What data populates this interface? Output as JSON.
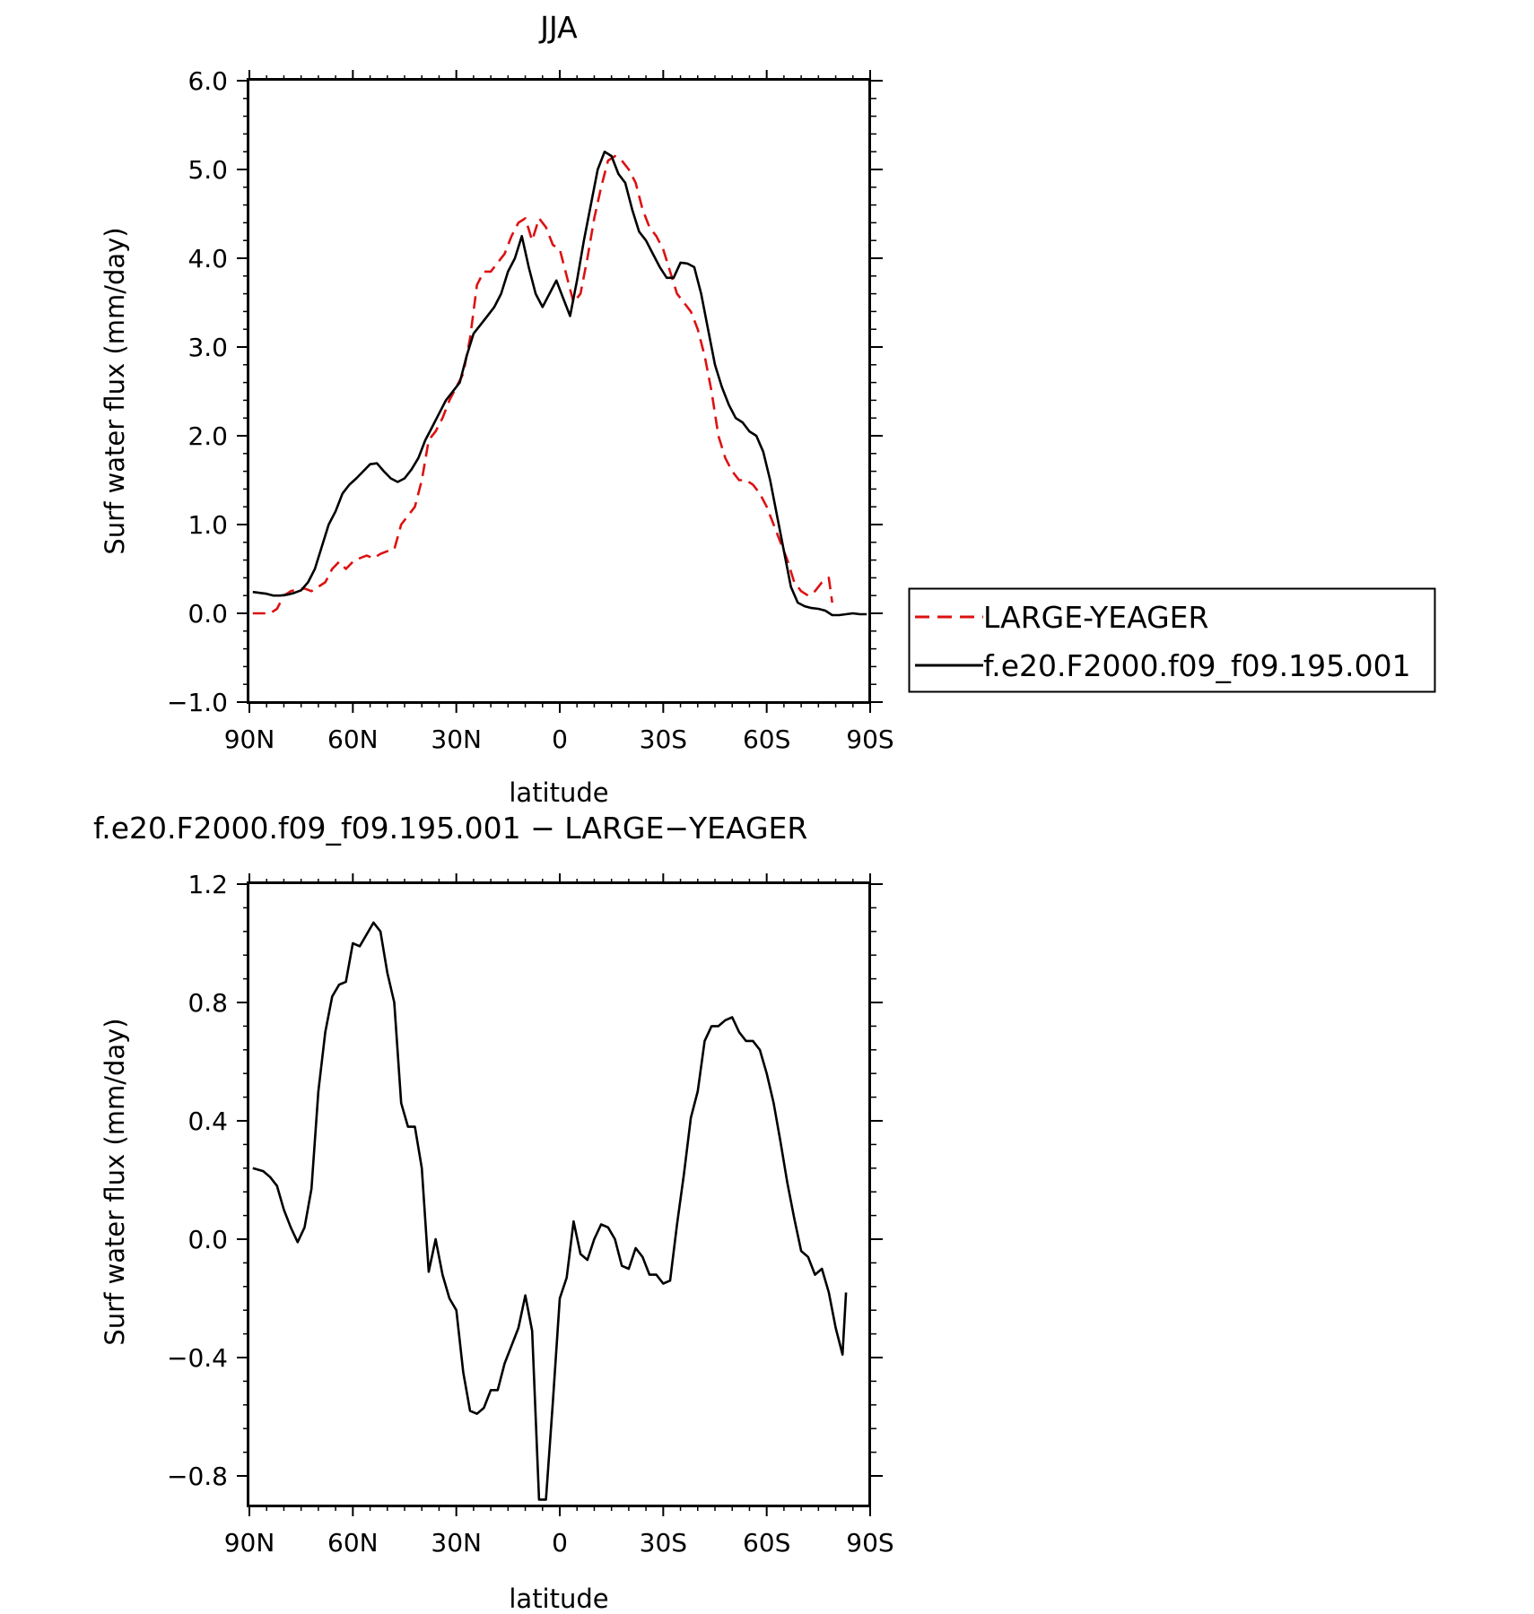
{
  "chart_data": [
    {
      "type": "line",
      "title": "JJA",
      "xlabel": "latitude",
      "ylabel": "Surf water flux (mm/day)",
      "xlim": [
        90,
        -90
      ],
      "ylim": [
        -1.0,
        6.0
      ],
      "x_ticks": [
        90,
        60,
        30,
        0,
        -30,
        -60,
        -90
      ],
      "x_tick_labels": [
        "90N",
        "60N",
        "30N",
        "0",
        "30S",
        "60S",
        "90S"
      ],
      "y_ticks": [
        -1.0,
        0.0,
        1.0,
        2.0,
        3.0,
        4.0,
        5.0,
        6.0
      ],
      "y_tick_labels": [
        "−1.0",
        "0.0",
        "1.0",
        "2.0",
        "3.0",
        "4.0",
        "5.0",
        "6.0"
      ],
      "grid": false,
      "legend_position": "right",
      "series": [
        {
          "name": "LARGE-YEAGER",
          "color": "#dd1111",
          "dash": "dashed",
          "points": [
            [
              89,
              0.0
            ],
            [
              87,
              0.0
            ],
            [
              84,
              0.0
            ],
            [
              82,
              0.05
            ],
            [
              80,
              0.2
            ],
            [
              78,
              0.25
            ],
            [
              76,
              0.27
            ],
            [
              74,
              0.28
            ],
            [
              72,
              0.25
            ],
            [
              70,
              0.3
            ],
            [
              68,
              0.35
            ],
            [
              66,
              0.5
            ],
            [
              64,
              0.58
            ],
            [
              62,
              0.5
            ],
            [
              60,
              0.58
            ],
            [
              58,
              0.62
            ],
            [
              56,
              0.65
            ],
            [
              54,
              0.62
            ],
            [
              52,
              0.67
            ],
            [
              50,
              0.7
            ],
            [
              48,
              0.72
            ],
            [
              46,
              1.0
            ],
            [
              44,
              1.1
            ],
            [
              42,
              1.2
            ],
            [
              40,
              1.5
            ],
            [
              38,
              1.95
            ],
            [
              36,
              2.05
            ],
            [
              34,
              2.2
            ],
            [
              32,
              2.4
            ],
            [
              30,
              2.55
            ],
            [
              28,
              2.7
            ],
            [
              26,
              3.1
            ],
            [
              24,
              3.7
            ],
            [
              22,
              3.85
            ],
            [
              20,
              3.85
            ],
            [
              18,
              3.95
            ],
            [
              16,
              4.05
            ],
            [
              14,
              4.25
            ],
            [
              12,
              4.4
            ],
            [
              10,
              4.45
            ],
            [
              8,
              4.2
            ],
            [
              6,
              4.45
            ],
            [
              4,
              4.35
            ],
            [
              2,
              4.15
            ],
            [
              0,
              4.1
            ],
            [
              -2,
              3.8
            ],
            [
              -4,
              3.5
            ],
            [
              -6,
              3.6
            ],
            [
              -8,
              4.0
            ],
            [
              -10,
              4.45
            ],
            [
              -12,
              4.8
            ],
            [
              -14,
              5.1
            ],
            [
              -16,
              5.15
            ],
            [
              -18,
              5.1
            ],
            [
              -20,
              5.0
            ],
            [
              -22,
              4.85
            ],
            [
              -24,
              4.55
            ],
            [
              -26,
              4.35
            ],
            [
              -28,
              4.25
            ],
            [
              -30,
              4.1
            ],
            [
              -32,
              3.85
            ],
            [
              -34,
              3.6
            ],
            [
              -36,
              3.5
            ],
            [
              -38,
              3.4
            ],
            [
              -40,
              3.2
            ],
            [
              -42,
              2.9
            ],
            [
              -44,
              2.5
            ],
            [
              -46,
              2.0
            ],
            [
              -48,
              1.75
            ],
            [
              -50,
              1.6
            ],
            [
              -52,
              1.5
            ],
            [
              -54,
              1.5
            ],
            [
              -56,
              1.45
            ],
            [
              -58,
              1.35
            ],
            [
              -60,
              1.2
            ],
            [
              -62,
              1.0
            ],
            [
              -64,
              0.8
            ],
            [
              -66,
              0.6
            ],
            [
              -68,
              0.35
            ],
            [
              -70,
              0.25
            ],
            [
              -72,
              0.2
            ],
            [
              -74,
              0.25
            ],
            [
              -76,
              0.35
            ],
            [
              -78,
              0.4
            ],
            [
              -79,
              0.12
            ]
          ]
        },
        {
          "name": "f.e20.F2000.f09_f09.195.001",
          "color": "#000000",
          "dash": "solid",
          "points": [
            [
              89,
              0.24
            ],
            [
              87,
              0.23
            ],
            [
              85,
              0.22
            ],
            [
              83,
              0.2
            ],
            [
              81,
              0.2
            ],
            [
              79,
              0.21
            ],
            [
              77,
              0.23
            ],
            [
              75,
              0.26
            ],
            [
              73,
              0.35
            ],
            [
              71,
              0.5
            ],
            [
              69,
              0.75
            ],
            [
              67,
              1.0
            ],
            [
              65,
              1.15
            ],
            [
              63,
              1.35
            ],
            [
              61,
              1.45
            ],
            [
              59,
              1.52
            ],
            [
              57,
              1.6
            ],
            [
              55,
              1.68
            ],
            [
              53,
              1.69
            ],
            [
              51,
              1.6
            ],
            [
              49,
              1.52
            ],
            [
              47,
              1.48
            ],
            [
              45,
              1.52
            ],
            [
              43,
              1.62
            ],
            [
              41,
              1.75
            ],
            [
              39,
              1.95
            ],
            [
              37,
              2.1
            ],
            [
              35,
              2.25
            ],
            [
              33,
              2.4
            ],
            [
              31,
              2.5
            ],
            [
              29,
              2.6
            ],
            [
              27,
              2.9
            ],
            [
              25,
              3.15
            ],
            [
              23,
              3.25
            ],
            [
              21,
              3.35
            ],
            [
              19,
              3.45
            ],
            [
              17,
              3.6
            ],
            [
              15,
              3.85
            ],
            [
              13,
              4.0
            ],
            [
              11,
              4.25
            ],
            [
              9,
              3.9
            ],
            [
              7,
              3.6
            ],
            [
              5,
              3.45
            ],
            [
              3,
              3.6
            ],
            [
              1,
              3.75
            ],
            [
              -1,
              3.55
            ],
            [
              -3,
              3.35
            ],
            [
              -5,
              3.75
            ],
            [
              -7,
              4.2
            ],
            [
              -9,
              4.6
            ],
            [
              -11,
              5.0
            ],
            [
              -13,
              5.2
            ],
            [
              -15,
              5.15
            ],
            [
              -17,
              4.95
            ],
            [
              -19,
              4.85
            ],
            [
              -21,
              4.55
            ],
            [
              -23,
              4.3
            ],
            [
              -25,
              4.2
            ],
            [
              -27,
              4.05
            ],
            [
              -29,
              3.9
            ],
            [
              -31,
              3.78
            ],
            [
              -33,
              3.78
            ],
            [
              -35,
              3.95
            ],
            [
              -37,
              3.94
            ],
            [
              -39,
              3.9
            ],
            [
              -41,
              3.6
            ],
            [
              -43,
              3.2
            ],
            [
              -45,
              2.8
            ],
            [
              -47,
              2.55
            ],
            [
              -49,
              2.35
            ],
            [
              -51,
              2.2
            ],
            [
              -53,
              2.15
            ],
            [
              -55,
              2.05
            ],
            [
              -57,
              2.0
            ],
            [
              -59,
              1.82
            ],
            [
              -61,
              1.5
            ],
            [
              -63,
              1.1
            ],
            [
              -65,
              0.7
            ],
            [
              -67,
              0.3
            ],
            [
              -69,
              0.12
            ],
            [
              -71,
              0.08
            ],
            [
              -73,
              0.06
            ],
            [
              -75,
              0.05
            ],
            [
              -77,
              0.03
            ],
            [
              -79,
              -0.02
            ],
            [
              -81,
              -0.02
            ],
            [
              -83,
              -0.01
            ],
            [
              -85,
              0.0
            ],
            [
              -87,
              -0.01
            ],
            [
              -89,
              -0.01
            ]
          ]
        }
      ]
    },
    {
      "type": "line",
      "title": "f.e20.F2000.f09_f09.195.001 − LARGE−YEAGER",
      "xlabel": "latitude",
      "ylabel": "Surf water flux (mm/day)",
      "xlim": [
        90,
        -90
      ],
      "ylim": [
        -0.9,
        1.2
      ],
      "x_ticks": [
        90,
        60,
        30,
        0,
        -30,
        -60,
        -90
      ],
      "x_tick_labels": [
        "90N",
        "60N",
        "30N",
        "0",
        "30S",
        "60S",
        "90S"
      ],
      "y_ticks": [
        -0.8,
        -0.4,
        0.0,
        0.4,
        0.8,
        1.2
      ],
      "y_tick_labels": [
        "−0.8",
        "−0.4",
        "0.0",
        "0.4",
        "0.8",
        "1.2"
      ],
      "grid": false,
      "series": [
        {
          "color": "#000000",
          "dash": "solid",
          "points": [
            [
              89,
              0.24
            ],
            [
              86,
              0.23
            ],
            [
              84,
              0.21
            ],
            [
              82,
              0.18
            ],
            [
              80,
              0.1
            ],
            [
              78,
              0.04
            ],
            [
              76,
              -0.01
            ],
            [
              74,
              0.04
            ],
            [
              72,
              0.17
            ],
            [
              70,
              0.5
            ],
            [
              68,
              0.7
            ],
            [
              66,
              0.82
            ],
            [
              64,
              0.86
            ],
            [
              62,
              0.87
            ],
            [
              60,
              1.0
            ],
            [
              58,
              0.99
            ],
            [
              56,
              1.03
            ],
            [
              54,
              1.07
            ],
            [
              52,
              1.04
            ],
            [
              50,
              0.9
            ],
            [
              48,
              0.8
            ],
            [
              46,
              0.46
            ],
            [
              44,
              0.38
            ],
            [
              42,
              0.38
            ],
            [
              40,
              0.24
            ],
            [
              38,
              -0.11
            ],
            [
              36,
              0.0
            ],
            [
              34,
              -0.12
            ],
            [
              32,
              -0.2
            ],
            [
              30,
              -0.24
            ],
            [
              28,
              -0.45
            ],
            [
              26,
              -0.58
            ],
            [
              24,
              -0.59
            ],
            [
              22,
              -0.57
            ],
            [
              20,
              -0.51
            ],
            [
              18,
              -0.51
            ],
            [
              16,
              -0.42
            ],
            [
              14,
              -0.36
            ],
            [
              12,
              -0.3
            ],
            [
              10,
              -0.19
            ],
            [
              8,
              -0.31
            ],
            [
              6,
              -0.88
            ],
            [
              4,
              -0.88
            ],
            [
              2,
              -0.55
            ],
            [
              0,
              -0.2
            ],
            [
              -2,
              -0.13
            ],
            [
              -4,
              0.06
            ],
            [
              -6,
              -0.05
            ],
            [
              -8,
              -0.07
            ],
            [
              -10,
              0.0
            ],
            [
              -12,
              0.05
            ],
            [
              -14,
              0.04
            ],
            [
              -16,
              0.0
            ],
            [
              -18,
              -0.09
            ],
            [
              -20,
              -0.1
            ],
            [
              -22,
              -0.03
            ],
            [
              -24,
              -0.06
            ],
            [
              -26,
              -0.12
            ],
            [
              -28,
              -0.12
            ],
            [
              -30,
              -0.15
            ],
            [
              -32,
              -0.14
            ],
            [
              -34,
              0.05
            ],
            [
              -36,
              0.22
            ],
            [
              -38,
              0.41
            ],
            [
              -40,
              0.5
            ],
            [
              -42,
              0.67
            ],
            [
              -44,
              0.72
            ],
            [
              -46,
              0.72
            ],
            [
              -48,
              0.74
            ],
            [
              -50,
              0.75
            ],
            [
              -52,
              0.7
            ],
            [
              -54,
              0.67
            ],
            [
              -56,
              0.67
            ],
            [
              -58,
              0.64
            ],
            [
              -60,
              0.56
            ],
            [
              -62,
              0.46
            ],
            [
              -64,
              0.33
            ],
            [
              -66,
              0.19
            ],
            [
              -68,
              0.07
            ],
            [
              -70,
              -0.04
            ],
            [
              -72,
              -0.06
            ],
            [
              -74,
              -0.12
            ],
            [
              -76,
              -0.1
            ],
            [
              -78,
              -0.18
            ],
            [
              -80,
              -0.3
            ],
            [
              -82,
              -0.39
            ],
            [
              -83,
              -0.18
            ]
          ]
        }
      ]
    }
  ]
}
